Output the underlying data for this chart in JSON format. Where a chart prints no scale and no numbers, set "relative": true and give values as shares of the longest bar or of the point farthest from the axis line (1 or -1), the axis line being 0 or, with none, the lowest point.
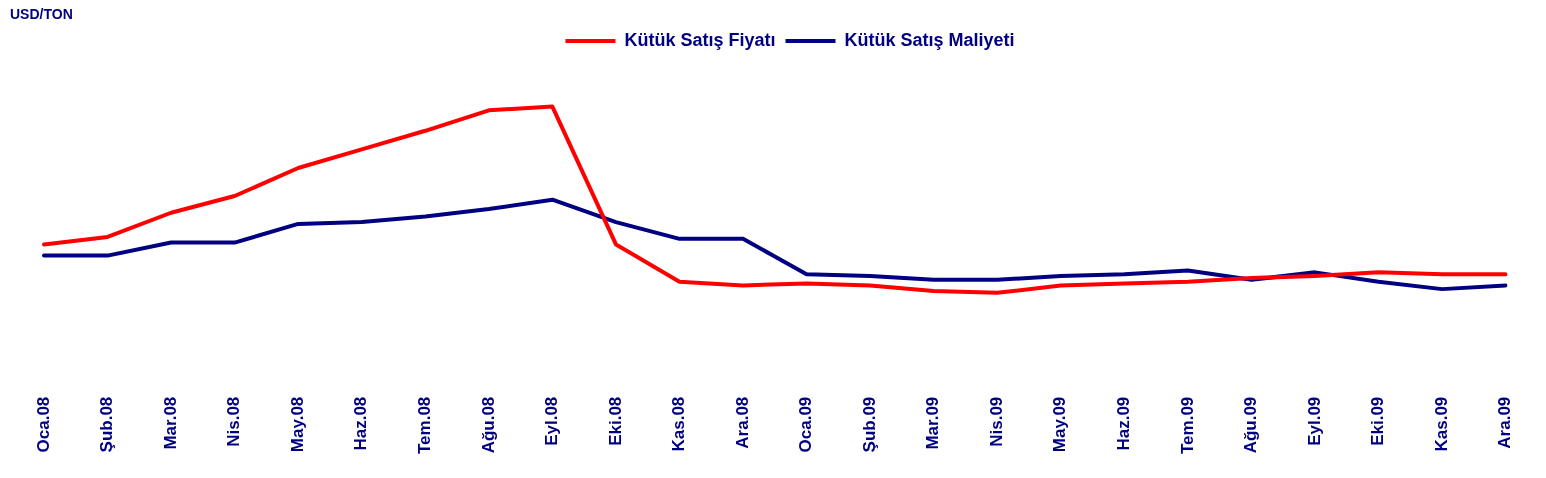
{
  "chart_data": {
    "type": "line",
    "relative": true,
    "annotations": [
      "USD/TON"
    ],
    "categories": [
      "Oca.08",
      "Şub.08",
      "Mar.08",
      "Nis.08",
      "May.08",
      "Haz.08",
      "Tem.08",
      "Ağu.08",
      "Eyl.08",
      "Eki.08",
      "Kas.08",
      "Ara.08",
      "Oca.09",
      "Şub.09",
      "Mar.09",
      "Nis.09",
      "May.09",
      "Haz.09",
      "Tem.09",
      "Ağu.09",
      "Eyl.09",
      "Eki.09",
      "Kas.09",
      "Ara.09"
    ],
    "series": [
      {
        "name": "Kütük Satış Fiyatı",
        "color": "#ff0000",
        "values": [
          0.26,
          0.3,
          0.43,
          0.52,
          0.67,
          0.77,
          0.87,
          0.98,
          1,
          0.26,
          0.06,
          0.04,
          0.05,
          0.04,
          0.01,
          0,
          0.04,
          0.05,
          0.06,
          0.08,
          0.09,
          0.11,
          0.1,
          0.1
        ]
      },
      {
        "name": "Kütük Satış Maliyeti",
        "color": "#000080",
        "values": [
          0.2,
          0.2,
          0.27,
          0.27,
          0.37,
          0.38,
          0.41,
          0.45,
          0.5,
          0.38,
          0.29,
          0.29,
          0.1,
          0.09,
          0.07,
          0.07,
          0.09,
          0.1,
          0.12,
          0.07,
          0.11,
          0.06,
          0.02,
          0.04
        ]
      }
    ],
    "legend": "top",
    "grid": false,
    "marker": "none",
    "line_style": "solid"
  }
}
